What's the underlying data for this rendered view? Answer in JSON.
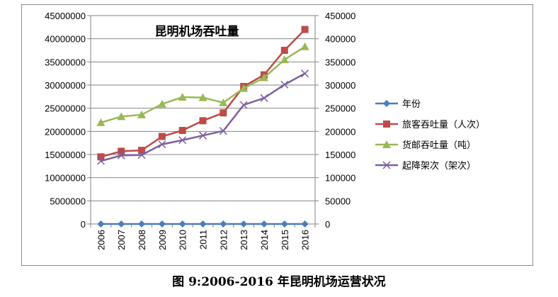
{
  "caption": "图 9:2006-2016 年昆明机场运营状况",
  "chart_data": {
    "type": "line",
    "title": "昆明机场吞吐量",
    "categories": [
      "2006",
      "2007",
      "2008",
      "2009",
      "2010",
      "2011",
      "2012",
      "2013",
      "2014",
      "2015",
      "2016"
    ],
    "y_left": {
      "range": [
        0,
        45000000
      ],
      "ticks": [
        0,
        5000000,
        10000000,
        15000000,
        20000000,
        25000000,
        30000000,
        35000000,
        40000000,
        45000000
      ]
    },
    "y_right": {
      "range": [
        0,
        450000
      ],
      "ticks": [
        0,
        50000,
        100000,
        150000,
        200000,
        250000,
        300000,
        350000,
        400000,
        450000
      ]
    },
    "grid": true,
    "legend_position": "right",
    "series": [
      {
        "name": "年份",
        "axis": "left",
        "marker": "diamond",
        "color": "#4a7ebb",
        "values": [
          2006,
          2007,
          2008,
          2009,
          2010,
          2011,
          2012,
          2013,
          2014,
          2015,
          2016
        ]
      },
      {
        "name": "旅客吞吐量（人次）",
        "axis": "left",
        "marker": "square",
        "color": "#be4b48",
        "values": [
          14500000,
          15700000,
          15900000,
          18900000,
          20200000,
          22300000,
          24000000,
          29700000,
          32200000,
          37500000,
          42000000
        ]
      },
      {
        "name": "货邮吞吐量（吨）",
        "axis": "right",
        "marker": "triangle",
        "color": "#98b954",
        "values": [
          219000,
          232000,
          236000,
          259000,
          274000,
          273000,
          262000,
          293000,
          316000,
          355000,
          383000
        ]
      },
      {
        "name": "起降架次（架次）",
        "axis": "right",
        "marker": "x",
        "color": "#7d60a0",
        "values": [
          136000,
          148000,
          149000,
          172000,
          181000,
          191000,
          201000,
          257000,
          272000,
          301000,
          325000
        ]
      }
    ]
  }
}
